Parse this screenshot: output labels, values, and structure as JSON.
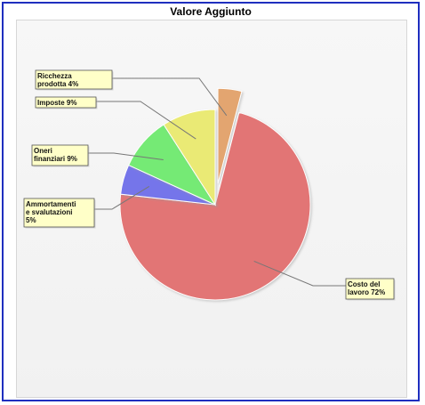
{
  "chart_data": {
    "type": "pie",
    "title": "Valore Aggiunto",
    "slices": [
      {
        "label": "Ricchezza prodotta 4%",
        "label_lines": [
          "Ricchezza",
          "prodotta 4%"
        ],
        "value": 4,
        "color": "#e3a56f",
        "exploded": true
      },
      {
        "label": "Costo del lavoro 72%",
        "label_lines": [
          "Costo del",
          "lavoro 72%"
        ],
        "value": 72,
        "color": "#e27474",
        "exploded": false
      },
      {
        "label": "Ammortamenti e svalutazioni 5%",
        "label_lines": [
          "Ammortamenti",
          "e svalutazioni",
          "5%"
        ],
        "value": 5,
        "color": "#7474ea",
        "exploded": false
      },
      {
        "label": "Oneri finanziari 9%",
        "label_lines": [
          "Oneri",
          "finanziari 9%"
        ],
        "value": 9,
        "color": "#74ea74",
        "exploded": false
      },
      {
        "label": "Imposte 9%",
        "label_lines": [
          "Imposte 9%"
        ],
        "value": 9,
        "color": "#eaea74",
        "exploded": false
      }
    ]
  }
}
